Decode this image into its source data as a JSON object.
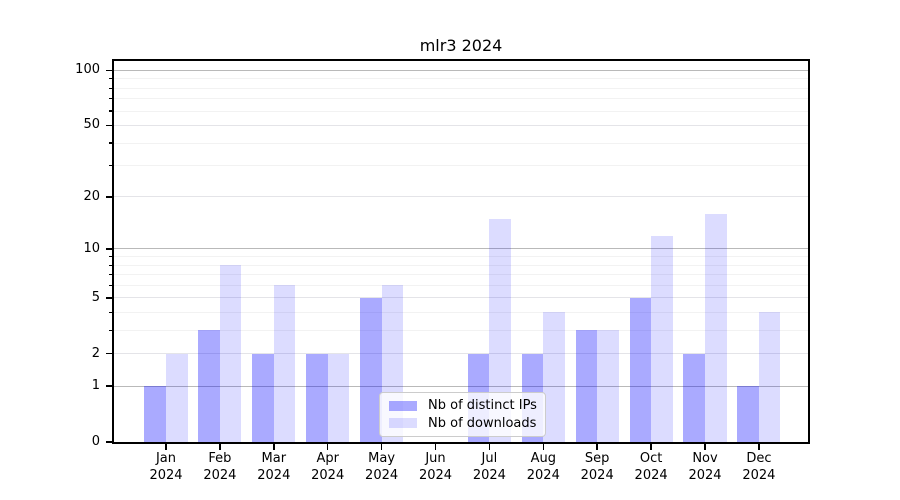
{
  "chart_data": {
    "type": "bar",
    "title": "mlr3 2024",
    "year": "2024",
    "months": [
      "Jan",
      "Feb",
      "Mar",
      "Apr",
      "May",
      "Jun",
      "Jul",
      "Aug",
      "Sep",
      "Oct",
      "Nov",
      "Dec"
    ],
    "series": [
      {
        "name": "Nb of distinct IPs",
        "color": "rgba(0,0,255,0.333)",
        "values": [
          1,
          3,
          2,
          2,
          5,
          0,
          2,
          2,
          3,
          5,
          2,
          1
        ]
      },
      {
        "name": "Nb of downloads",
        "color": "rgba(0,0,255,0.137)",
        "values": [
          2,
          8,
          6,
          2,
          6,
          0,
          15,
          4,
          3,
          12,
          16,
          4
        ]
      }
    ],
    "yscale": "log1p",
    "ylim": [
      0,
      113
    ],
    "ytick_labels": [
      0,
      1,
      2,
      5,
      10,
      20,
      50,
      100
    ],
    "ymajor_gridlines": [
      1,
      10,
      100
    ],
    "ylabeled_gridlines": [
      2,
      5,
      20,
      50
    ],
    "yminor_gridlines": [
      3,
      4,
      6,
      7,
      8,
      9,
      30,
      40,
      60,
      70,
      80,
      90
    ],
    "grid": "on",
    "legend_position": "lower center"
  },
  "colors": {
    "axis": "#000000",
    "major_grid": "#b9b9b9",
    "labeled_grid": "#e4e4e8",
    "minor_grid": "#f2f2f2",
    "legend_border": "#cccccc",
    "tick_text": "#000000"
  }
}
